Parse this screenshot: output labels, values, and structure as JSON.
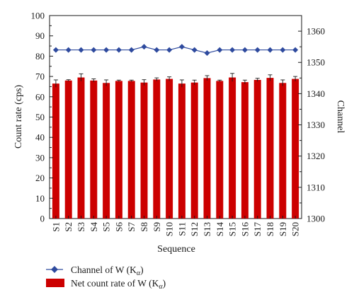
{
  "chart_data": {
    "type": "bar",
    "categories": [
      "S1",
      "S2",
      "S3",
      "S4",
      "S5",
      "S6",
      "S7",
      "S8",
      "S9",
      "S10",
      "S11",
      "S12",
      "S13",
      "S14",
      "S15",
      "S16",
      "S17",
      "S18",
      "S19",
      "S20"
    ],
    "xlabel": "Sequence",
    "ylabel": "Count rate (cps)",
    "y2label": "Channel",
    "ylim": [
      0,
      100
    ],
    "y2lim": [
      1300,
      1365
    ],
    "yticks": [
      0,
      10,
      20,
      30,
      40,
      50,
      60,
      70,
      80,
      90,
      100
    ],
    "y2ticks": [
      1300,
      1310,
      1320,
      1330,
      1340,
      1350,
      1360
    ],
    "series": [
      {
        "name": "Net count rate of W (Kα)",
        "type": "bar",
        "axis": "left",
        "color": "#cc0000",
        "values": [
          66.5,
          68.0,
          69.5,
          68.0,
          66.8,
          67.8,
          67.8,
          67.0,
          68.5,
          68.8,
          66.5,
          67.0,
          69.2,
          67.8,
          69.5,
          67.2,
          68.3,
          69.3,
          66.8,
          68.8
        ],
        "errors": [
          1.8,
          0.4,
          1.8,
          0.8,
          1.5,
          0.4,
          0.4,
          1.4,
          0.8,
          1.0,
          1.8,
          1.2,
          1.2,
          0.4,
          2.0,
          1.0,
          0.8,
          1.5,
          1.5,
          1.2
        ]
      },
      {
        "name": "Channel of W (Kα)",
        "type": "line",
        "axis": "right",
        "color": "#2e4a9e",
        "values": [
          1354,
          1354,
          1354,
          1354,
          1354,
          1354,
          1354,
          1355,
          1354,
          1354,
          1355,
          1354,
          1353,
          1354,
          1354,
          1354,
          1354,
          1354,
          1354,
          1354
        ]
      }
    ],
    "legend": {
      "placement": "bottom-left",
      "items": [
        {
          "prefix": "Channel of W (K",
          "sub": "α",
          "suffix": ")"
        },
        {
          "prefix": "Net count rate of W (K",
          "sub": "α",
          "suffix": ")"
        }
      ]
    },
    "grid": false
  }
}
